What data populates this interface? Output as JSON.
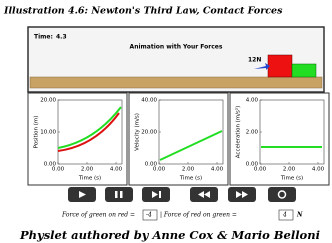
{
  "header": {
    "title": "Illustration 4.6: Newton's Third Law, Contact Forces"
  },
  "animation": {
    "time_label": "Time:",
    "time_value": "4.3",
    "title": "Animation with Your Forces",
    "force_label": "12N"
  },
  "graphs": [
    {
      "ylabel": "Position (m)",
      "xlabel": "Time (s)",
      "yticks": [
        "20.00",
        "10.00",
        "0.00"
      ],
      "xticks": [
        "0.00",
        "2.00",
        "4.00"
      ]
    },
    {
      "ylabel": "Velocity (m/s)",
      "xlabel": "Time (s)",
      "yticks": [
        "40.00",
        "20.00",
        "0.00"
      ],
      "xticks": [
        "0.00",
        "2.00",
        "4.00"
      ]
    },
    {
      "ylabel": "Acceleration (m/s²)",
      "xlabel": "Time (s)",
      "yticks": [
        "4.00",
        "2.00",
        "0.00"
      ],
      "xticks": [
        "0.00",
        "2.00",
        "4.00"
      ]
    }
  ],
  "controls": {
    "force_green_on_red_label": "Force of green on red =",
    "force_green_on_red": "-4",
    "separator": "| Force of red on green =",
    "force_red_on_green": "4",
    "unit": "N"
  },
  "footer": {
    "text": "Physlet authored by Anne Cox & Mario Belloni"
  }
}
